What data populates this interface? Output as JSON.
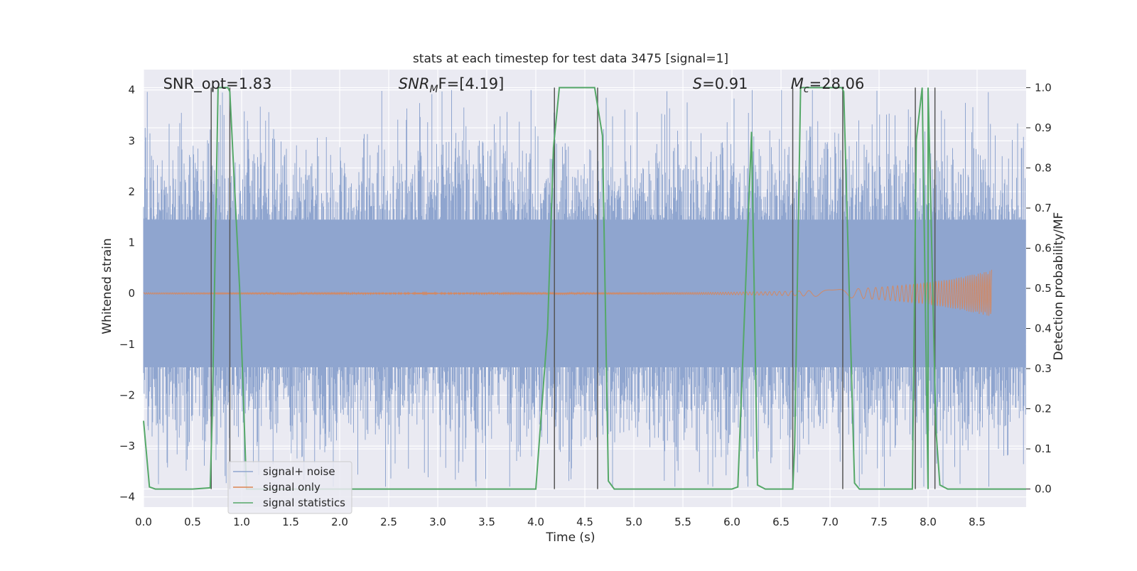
{
  "chart_data": {
    "type": "line",
    "title": "stats at each timestep for test data 3475 [signal=1]",
    "xlabel": "Time (s)",
    "ylabel_left": "Whitened strain",
    "ylabel_right": "Detection probability/MF",
    "xlim": [
      0,
      9.0
    ],
    "ylim_left": [
      -4.2,
      4.4
    ],
    "ylim_right": [
      -0.045,
      1.045
    ],
    "x_ticks": [
      "0.0",
      "0.5",
      "1.0",
      "1.5",
      "2.0",
      "2.5",
      "3.0",
      "3.5",
      "4.0",
      "4.5",
      "5.0",
      "5.5",
      "6.0",
      "6.5",
      "7.0",
      "7.5",
      "8.0",
      "8.5"
    ],
    "y_ticks_left": [
      "4",
      "3",
      "2",
      "1",
      "0",
      "−1",
      "−2",
      "−3",
      "−4"
    ],
    "y_ticks_right": [
      "1.0",
      "0.9",
      "0.8",
      "0.7",
      "0.6",
      "0.5",
      "0.4",
      "0.3",
      "0.2",
      "0.1",
      "0.0"
    ],
    "grid": true,
    "legend_position": "lower-left",
    "annotations": [
      {
        "text": "SNR_opt=1.83",
        "x": 0.2
      },
      {
        "text": "SNR",
        "sub": "M",
        "suffix": "F=[4.19]",
        "x": 2.6,
        "italic": true
      },
      {
        "text": "S",
        "suffix": "=0.91",
        "x": 5.6,
        "italic": true
      },
      {
        "text": "M",
        "sub": "c",
        "suffix": "=28.06",
        "x": 6.6,
        "italic": true
      }
    ],
    "series": [
      {
        "name": "signal+ noise",
        "color": "#8fa5cf",
        "style": "noise",
        "amplitude_sigma": 1.0,
        "extreme_min": -3.8,
        "extreme_max": 4.0
      },
      {
        "name": "signal only",
        "color": "#dd8452",
        "style": "chirp",
        "x_end": 8.65,
        "peak": 0.45
      },
      {
        "name": "signal statistics",
        "color": "#55a868",
        "style": "line",
        "x": [
          0.0,
          0.06,
          0.12,
          0.25,
          0.5,
          0.68,
          0.7,
          0.76,
          0.86,
          0.88,
          0.98,
          1.05,
          1.2,
          2.0,
          3.0,
          4.0,
          4.12,
          4.18,
          4.24,
          4.3,
          4.4,
          4.6,
          4.68,
          4.74,
          4.8,
          5.0,
          6.0,
          6.06,
          6.2,
          6.26,
          6.34,
          6.62,
          6.64,
          6.7,
          6.8,
          7.0,
          7.12,
          7.14,
          7.25,
          7.3,
          7.4,
          8.0,
          7.84,
          7.88,
          7.94,
          8.0,
          8.08,
          8.12,
          8.2,
          8.4,
          9.0
        ],
        "y": [
          0.17,
          0.005,
          0.0,
          0.0,
          0.0,
          0.003,
          0.18,
          1.0,
          1.0,
          0.99,
          0.5,
          0.0,
          0.0,
          0.0,
          0.0,
          0.0,
          0.4,
          0.85,
          1.0,
          1.0,
          1.0,
          1.0,
          0.88,
          0.02,
          0.0,
          0.0,
          0.0,
          0.005,
          0.89,
          0.01,
          0.0,
          0.0,
          0.11,
          1.0,
          1.0,
          1.0,
          1.0,
          0.99,
          0.015,
          0.0,
          0.0,
          0.0,
          0.0,
          0.87,
          1.0,
          1.0,
          0.15,
          0.01,
          0.0,
          0.0,
          0.0
        ]
      },
      {
        "name": "",
        "color": "#555555",
        "style": "vlines",
        "x": [
          0.69,
          0.88,
          4.19,
          4.63,
          6.62,
          7.13,
          7.87,
          8.07
        ]
      }
    ]
  }
}
